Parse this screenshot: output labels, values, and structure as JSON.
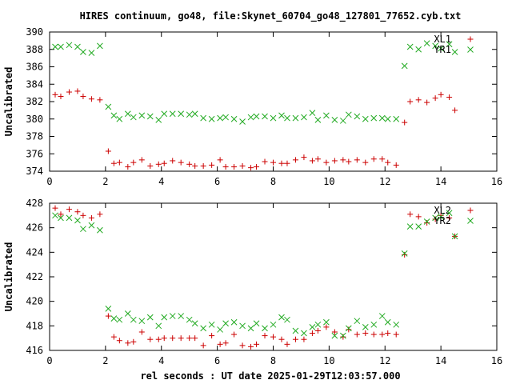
{
  "figure": {
    "title": "HIRES continuum, go48, file:Skynet_60704_go48_127801_77652.cyb.txt",
    "xlabel": "rel seconds : UT date 2025-01-29T12:03:57.000"
  },
  "colors": {
    "red": "#cc0000",
    "green": "#22aa22",
    "axis": "#000000"
  },
  "chart_data": [
    {
      "type": "scatter",
      "ylabel": "Uncalibrated",
      "xlim": [
        0,
        16
      ],
      "ylim": [
        374,
        390
      ],
      "xticks": [
        0,
        2,
        4,
        6,
        8,
        10,
        12,
        14,
        16
      ],
      "yticks": [
        374,
        376,
        378,
        380,
        382,
        384,
        386,
        388,
        390
      ],
      "legend_position": "top-right",
      "grid": false,
      "series": [
        {
          "name": "XL1",
          "marker": "+",
          "color": "#cc0000",
          "points": [
            [
              0.2,
              382.8
            ],
            [
              0.4,
              382.6
            ],
            [
              0.7,
              383.1
            ],
            [
              1.0,
              383.2
            ],
            [
              1.2,
              382.6
            ],
            [
              1.5,
              382.3
            ],
            [
              1.8,
              382.2
            ],
            [
              2.1,
              376.3
            ],
            [
              2.3,
              374.9
            ],
            [
              2.5,
              375.0
            ],
            [
              2.8,
              374.5
            ],
            [
              3.0,
              375.0
            ],
            [
              3.3,
              375.3
            ],
            [
              3.6,
              374.6
            ],
            [
              3.9,
              374.8
            ],
            [
              4.1,
              374.9
            ],
            [
              4.4,
              375.2
            ],
            [
              4.7,
              375.0
            ],
            [
              5.0,
              374.8
            ],
            [
              5.2,
              374.6
            ],
            [
              5.5,
              374.6
            ],
            [
              5.8,
              374.7
            ],
            [
              6.1,
              375.3
            ],
            [
              6.3,
              374.5
            ],
            [
              6.6,
              374.5
            ],
            [
              6.9,
              374.6
            ],
            [
              7.2,
              374.4
            ],
            [
              7.4,
              374.5
            ],
            [
              7.7,
              375.1
            ],
            [
              8.0,
              375.0
            ],
            [
              8.3,
              374.9
            ],
            [
              8.5,
              374.9
            ],
            [
              8.8,
              375.3
            ],
            [
              9.1,
              375.6
            ],
            [
              9.4,
              375.2
            ],
            [
              9.6,
              375.4
            ],
            [
              9.9,
              375.0
            ],
            [
              10.2,
              375.2
            ],
            [
              10.5,
              375.3
            ],
            [
              10.7,
              375.1
            ],
            [
              11.0,
              375.3
            ],
            [
              11.3,
              375.0
            ],
            [
              11.6,
              375.4
            ],
            [
              11.9,
              375.4
            ],
            [
              12.1,
              375.0
            ],
            [
              12.4,
              374.7
            ],
            [
              12.7,
              379.6
            ],
            [
              12.9,
              382.0
            ],
            [
              13.2,
              382.2
            ],
            [
              13.5,
              381.9
            ],
            [
              13.8,
              382.4
            ],
            [
              14.0,
              382.8
            ],
            [
              14.3,
              382.5
            ],
            [
              14.5,
              381.0
            ]
          ]
        },
        {
          "name": "YR1",
          "marker": "x",
          "color": "#22aa22",
          "points": [
            [
              0.2,
              388.3
            ],
            [
              0.4,
              388.3
            ],
            [
              0.7,
              388.5
            ],
            [
              1.0,
              388.3
            ],
            [
              1.2,
              387.7
            ],
            [
              1.5,
              387.6
            ],
            [
              1.8,
              388.4
            ],
            [
              2.1,
              381.4
            ],
            [
              2.3,
              380.4
            ],
            [
              2.5,
              380.0
            ],
            [
              2.8,
              380.6
            ],
            [
              3.0,
              380.2
            ],
            [
              3.3,
              380.4
            ],
            [
              3.6,
              380.3
            ],
            [
              3.9,
              379.9
            ],
            [
              4.1,
              380.6
            ],
            [
              4.4,
              380.6
            ],
            [
              4.7,
              380.6
            ],
            [
              5.0,
              380.5
            ],
            [
              5.2,
              380.6
            ],
            [
              5.5,
              380.1
            ],
            [
              5.8,
              380.0
            ],
            [
              6.1,
              380.1
            ],
            [
              6.3,
              380.2
            ],
            [
              6.6,
              380.0
            ],
            [
              6.9,
              379.7
            ],
            [
              7.2,
              380.2
            ],
            [
              7.4,
              380.3
            ],
            [
              7.7,
              380.3
            ],
            [
              8.0,
              380.1
            ],
            [
              8.3,
              380.4
            ],
            [
              8.5,
              380.1
            ],
            [
              8.8,
              380.1
            ],
            [
              9.1,
              380.2
            ],
            [
              9.4,
              380.7
            ],
            [
              9.6,
              379.9
            ],
            [
              9.9,
              380.4
            ],
            [
              10.2,
              379.9
            ],
            [
              10.5,
              379.8
            ],
            [
              10.7,
              380.5
            ],
            [
              11.0,
              380.3
            ],
            [
              11.3,
              380.0
            ],
            [
              11.6,
              380.1
            ],
            [
              11.9,
              380.1
            ],
            [
              12.1,
              380.0
            ],
            [
              12.4,
              380.0
            ],
            [
              12.7,
              386.1
            ],
            [
              12.9,
              388.3
            ],
            [
              13.2,
              388.0
            ],
            [
              13.5,
              388.7
            ],
            [
              13.8,
              388.4
            ],
            [
              14.0,
              388.1
            ],
            [
              14.3,
              388.6
            ],
            [
              14.5,
              387.7
            ]
          ]
        }
      ]
    },
    {
      "type": "scatter",
      "ylabel": "Uncalibrated",
      "xlim": [
        0,
        16
      ],
      "ylim": [
        416,
        428
      ],
      "xticks": [
        0,
        2,
        4,
        6,
        8,
        10,
        12,
        14,
        16
      ],
      "yticks": [
        416,
        418,
        420,
        422,
        424,
        426,
        428
      ],
      "legend_position": "top-right",
      "grid": false,
      "series": [
        {
          "name": "XL2",
          "marker": "+",
          "color": "#cc0000",
          "points": [
            [
              0.2,
              427.6
            ],
            [
              0.4,
              427.1
            ],
            [
              0.7,
              427.5
            ],
            [
              1.0,
              427.3
            ],
            [
              1.2,
              427.0
            ],
            [
              1.5,
              426.8
            ],
            [
              1.8,
              427.1
            ],
            [
              2.1,
              418.8
            ],
            [
              2.3,
              417.1
            ],
            [
              2.5,
              416.8
            ],
            [
              2.8,
              416.6
            ],
            [
              3.0,
              416.7
            ],
            [
              3.3,
              417.5
            ],
            [
              3.6,
              416.9
            ],
            [
              3.9,
              416.9
            ],
            [
              4.1,
              417.0
            ],
            [
              4.4,
              417.0
            ],
            [
              4.7,
              417.0
            ],
            [
              5.0,
              417.0
            ],
            [
              5.2,
              417.0
            ],
            [
              5.5,
              416.4
            ],
            [
              5.8,
              417.2
            ],
            [
              6.1,
              416.5
            ],
            [
              6.3,
              416.6
            ],
            [
              6.6,
              417.3
            ],
            [
              6.9,
              416.4
            ],
            [
              7.2,
              416.3
            ],
            [
              7.4,
              416.5
            ],
            [
              7.7,
              417.2
            ],
            [
              8.0,
              417.1
            ],
            [
              8.3,
              416.9
            ],
            [
              8.5,
              416.5
            ],
            [
              8.8,
              416.9
            ],
            [
              9.1,
              416.9
            ],
            [
              9.4,
              417.4
            ],
            [
              9.6,
              417.6
            ],
            [
              9.9,
              417.9
            ],
            [
              10.2,
              417.5
            ],
            [
              10.5,
              417.1
            ],
            [
              10.7,
              417.7
            ],
            [
              11.0,
              417.3
            ],
            [
              11.3,
              417.4
            ],
            [
              11.6,
              417.3
            ],
            [
              11.9,
              417.3
            ],
            [
              12.1,
              417.4
            ],
            [
              12.4,
              417.3
            ],
            [
              12.7,
              423.8
            ],
            [
              12.9,
              427.1
            ],
            [
              13.2,
              426.9
            ],
            [
              13.5,
              426.4
            ],
            [
              13.8,
              426.7
            ],
            [
              14.0,
              427.0
            ],
            [
              14.3,
              426.8
            ],
            [
              14.5,
              425.3
            ]
          ]
        },
        {
          "name": "YR2",
          "marker": "x",
          "color": "#22aa22",
          "points": [
            [
              0.2,
              427.0
            ],
            [
              0.4,
              426.8
            ],
            [
              0.7,
              426.8
            ],
            [
              1.0,
              426.6
            ],
            [
              1.2,
              425.9
            ],
            [
              1.5,
              426.2
            ],
            [
              1.8,
              425.8
            ],
            [
              2.1,
              419.4
            ],
            [
              2.3,
              418.6
            ],
            [
              2.5,
              418.5
            ],
            [
              2.8,
              419.0
            ],
            [
              3.0,
              418.5
            ],
            [
              3.3,
              418.4
            ],
            [
              3.6,
              418.7
            ],
            [
              3.9,
              418.0
            ],
            [
              4.1,
              418.7
            ],
            [
              4.4,
              418.8
            ],
            [
              4.7,
              418.8
            ],
            [
              5.0,
              418.5
            ],
            [
              5.2,
              418.2
            ],
            [
              5.5,
              417.8
            ],
            [
              5.8,
              418.1
            ],
            [
              6.1,
              417.7
            ],
            [
              6.3,
              418.2
            ],
            [
              6.6,
              418.3
            ],
            [
              6.9,
              418.0
            ],
            [
              7.2,
              417.8
            ],
            [
              7.4,
              418.2
            ],
            [
              7.7,
              417.8
            ],
            [
              8.0,
              418.1
            ],
            [
              8.3,
              418.7
            ],
            [
              8.5,
              418.5
            ],
            [
              8.8,
              417.6
            ],
            [
              9.1,
              417.4
            ],
            [
              9.4,
              417.9
            ],
            [
              9.6,
              418.1
            ],
            [
              9.9,
              418.3
            ],
            [
              10.2,
              417.2
            ],
            [
              10.5,
              417.2
            ],
            [
              10.7,
              417.8
            ],
            [
              11.0,
              418.4
            ],
            [
              11.3,
              417.9
            ],
            [
              11.6,
              418.1
            ],
            [
              11.9,
              418.8
            ],
            [
              12.1,
              418.3
            ],
            [
              12.4,
              418.1
            ],
            [
              12.7,
              423.9
            ],
            [
              12.9,
              426.1
            ],
            [
              13.2,
              426.1
            ],
            [
              13.5,
              426.5
            ],
            [
              13.8,
              426.8
            ],
            [
              14.0,
              426.9
            ],
            [
              14.3,
              427.2
            ],
            [
              14.5,
              425.3
            ]
          ]
        }
      ]
    }
  ]
}
